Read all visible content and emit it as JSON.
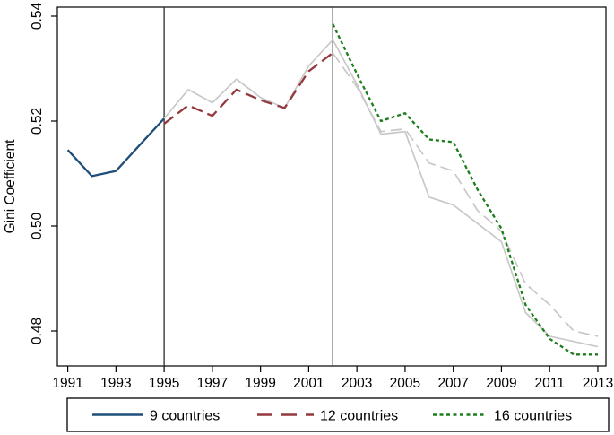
{
  "figure": {
    "background": "#ffffff",
    "border_color": "#000000"
  },
  "chart_data": {
    "type": "line",
    "title": "",
    "xlabel": "",
    "ylabel": "Gini Coefficient",
    "grid": false,
    "xlim": [
      1990.57,
      2013.33
    ],
    "ylim": [
      0.4733,
      0.5417
    ],
    "x_ticks": [
      {
        "year": 1991,
        "label": "1991"
      },
      {
        "year": 1993,
        "label": "1993"
      },
      {
        "year": 1995,
        "label": "1995"
      },
      {
        "year": 1997,
        "label": "1997"
      },
      {
        "year": 1999,
        "label": "1999"
      },
      {
        "year": 2001,
        "label": "2001"
      },
      {
        "year": 2003,
        "label": "2003"
      },
      {
        "year": 2005,
        "label": "2005"
      },
      {
        "year": 2007,
        "label": "2007"
      },
      {
        "year": 2009,
        "label": "2009"
      },
      {
        "year": 2011,
        "label": "2011"
      },
      {
        "year": 2013,
        "label": "2013"
      }
    ],
    "y_ticks": [
      {
        "value": 0.48,
        "label": "0.48"
      },
      {
        "value": 0.5,
        "label": "0.50"
      },
      {
        "value": 0.52,
        "label": "0.52"
      },
      {
        "value": 0.54,
        "label": "0.54"
      }
    ],
    "reference_lines": [
      {
        "x": 1995,
        "color": "#3a3a3a"
      },
      {
        "x": 2002,
        "color": "#3a3a3a"
      }
    ],
    "series": [
      {
        "name": "9 countries (gray continuation)",
        "role": "background",
        "color": "#c8c8c8",
        "dash": "none",
        "width": 1.7,
        "points": [
          [
            1995,
            0.5205
          ],
          [
            1996,
            0.526
          ],
          [
            1997,
            0.5235
          ],
          [
            1998,
            0.528
          ],
          [
            1999,
            0.5245
          ],
          [
            2000,
            0.5225
          ],
          [
            2001,
            0.5305
          ],
          [
            2002,
            0.5355
          ],
          [
            2003,
            0.527
          ],
          [
            2004,
            0.5175
          ],
          [
            2005,
            0.518
          ],
          [
            2006,
            0.5055
          ],
          [
            2007,
            0.504
          ],
          [
            2008,
            0.5005
          ],
          [
            2009,
            0.497
          ],
          [
            2010,
            0.4835
          ],
          [
            2011,
            0.479
          ],
          [
            2012,
            0.478
          ],
          [
            2013,
            0.477
          ]
        ]
      },
      {
        "name": "12 countries (gray continuation)",
        "role": "background",
        "color": "#c8c8c8",
        "dash": "long",
        "width": 1.7,
        "points": [
          [
            2002,
            0.533
          ],
          [
            2003,
            0.5265
          ],
          [
            2004,
            0.518
          ],
          [
            2005,
            0.5185
          ],
          [
            2006,
            0.512
          ],
          [
            2007,
            0.5105
          ],
          [
            2008,
            0.503
          ],
          [
            2009,
            0.499
          ],
          [
            2010,
            0.489
          ],
          [
            2011,
            0.485
          ],
          [
            2012,
            0.48
          ],
          [
            2013,
            0.479
          ]
        ]
      },
      {
        "name": "9 countries",
        "role": "primary",
        "color": "#1f4e79",
        "dash": "none",
        "width": 2.3,
        "points": [
          [
            1991,
            0.5145
          ],
          [
            1992,
            0.5095
          ],
          [
            1993,
            0.5105
          ],
          [
            1994,
            0.5155
          ],
          [
            1995,
            0.5205
          ]
        ]
      },
      {
        "name": "12 countries",
        "role": "primary",
        "color": "#943a3e",
        "dash": "long",
        "width": 2.3,
        "points": [
          [
            1995,
            0.5195
          ],
          [
            1996,
            0.523
          ],
          [
            1997,
            0.521
          ],
          [
            1998,
            0.526
          ],
          [
            1999,
            0.524
          ],
          [
            2000,
            0.5225
          ],
          [
            2001,
            0.5295
          ],
          [
            2002,
            0.533
          ]
        ]
      },
      {
        "name": "16 countries",
        "role": "primary",
        "color": "#1e7e1e",
        "dash": "short",
        "width": 2.3,
        "points": [
          [
            2002,
            0.5385
          ],
          [
            2003,
            0.529
          ],
          [
            2004,
            0.52
          ],
          [
            2005,
            0.5215
          ],
          [
            2006,
            0.5165
          ],
          [
            2007,
            0.516
          ],
          [
            2008,
            0.507
          ],
          [
            2009,
            0.4995
          ],
          [
            2010,
            0.485
          ],
          [
            2011,
            0.4785
          ],
          [
            2012,
            0.4755
          ],
          [
            2013,
            0.4755
          ]
        ]
      }
    ],
    "legend": {
      "position": "bottom",
      "border_color": "#000000",
      "entries": [
        {
          "label": "9 countries",
          "color": "#1f4e79",
          "dash": "none"
        },
        {
          "label": "12 countries",
          "color": "#943a3e",
          "dash": "long"
        },
        {
          "label": "16 countries",
          "color": "#1e7e1e",
          "dash": "short"
        }
      ]
    }
  }
}
